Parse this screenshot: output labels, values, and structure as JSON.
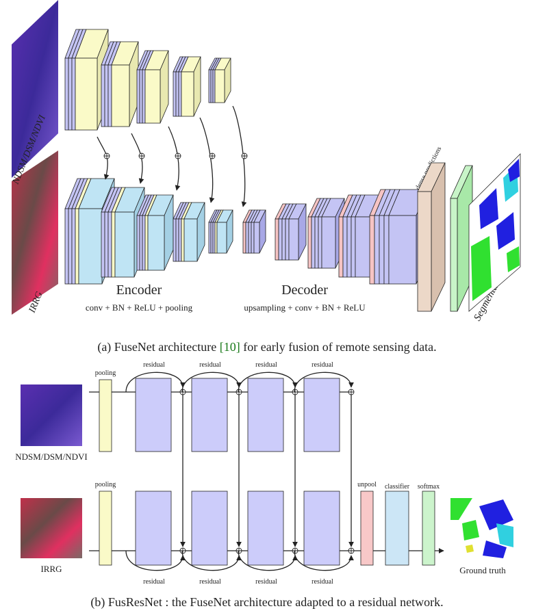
{
  "figure_a": {
    "input_labels": [
      "NDSM/DSM/NDVI",
      "IRRG"
    ],
    "encoder": {
      "title": "Encoder",
      "subtitle": "conv + BN + ReLU + pooling"
    },
    "decoder": {
      "title": "Decoder",
      "subtitle": "upsampling + conv + BN + ReLU"
    },
    "layer_labels": [
      "dense predictions",
      "softmax"
    ],
    "output_label": "Segmentation",
    "caption": {
      "prefix": "(a) FuseNet architecture ",
      "citation": "[10]",
      "suffix": " for early fusion of remote sensing data."
    }
  },
  "figure_b": {
    "input_labels": [
      "NDSM/DSM/NDVI",
      "IRRG"
    ],
    "pooling_labels": [
      "pooling",
      "pooling"
    ],
    "residual_top": [
      "residual",
      "residual",
      "residual",
      "residual"
    ],
    "residual_bottom": [
      "residual",
      "residual",
      "residual",
      "residual"
    ],
    "layer_labels": [
      "unpool",
      "classifier",
      "softmax"
    ],
    "output_label": "Ground truth",
    "caption": "(b) FusResNet : the FuseNet architecture adapted to a residual network."
  }
}
